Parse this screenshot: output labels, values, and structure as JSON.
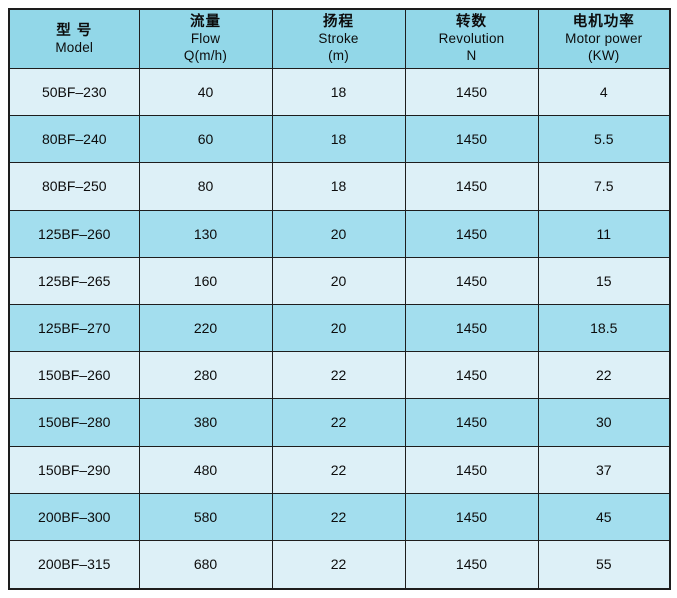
{
  "table": {
    "columns": [
      {
        "zh": "型 号",
        "en": "Model",
        "sub": ""
      },
      {
        "zh": "流量",
        "en": "Flow",
        "sub": "Q(m/h)"
      },
      {
        "zh": "扬程",
        "en": "Stroke",
        "sub": "(m)"
      },
      {
        "zh": "转数",
        "en": "Revolution",
        "sub": "N"
      },
      {
        "zh": "电机功率",
        "en": "Motor power",
        "sub": "(KW)"
      }
    ],
    "rows": [
      {
        "model": "50BF–230",
        "flow": "40",
        "stroke": "18",
        "revolution": "1450",
        "motor_power": "4"
      },
      {
        "model": "80BF–240",
        "flow": "60",
        "stroke": "18",
        "revolution": "1450",
        "motor_power": "5.5"
      },
      {
        "model": "80BF–250",
        "flow": "80",
        "stroke": "18",
        "revolution": "1450",
        "motor_power": "7.5"
      },
      {
        "model": "125BF–260",
        "flow": "130",
        "stroke": "20",
        "revolution": "1450",
        "motor_power": "11"
      },
      {
        "model": "125BF–265",
        "flow": "160",
        "stroke": "20",
        "revolution": "1450",
        "motor_power": "15"
      },
      {
        "model": "125BF–270",
        "flow": "220",
        "stroke": "20",
        "revolution": "1450",
        "motor_power": "18.5"
      },
      {
        "model": "150BF–260",
        "flow": "280",
        "stroke": "22",
        "revolution": "1450",
        "motor_power": "22"
      },
      {
        "model": "150BF–280",
        "flow": "380",
        "stroke": "22",
        "revolution": "1450",
        "motor_power": "30"
      },
      {
        "model": "150BF–290",
        "flow": "480",
        "stroke": "22",
        "revolution": "1450",
        "motor_power": "37"
      },
      {
        "model": "200BF–300",
        "flow": "580",
        "stroke": "22",
        "revolution": "1450",
        "motor_power": "45"
      },
      {
        "model": "200BF–315",
        "flow": "680",
        "stroke": "22",
        "revolution": "1450",
        "motor_power": "55"
      }
    ],
    "colors": {
      "header_bg": "#92d7e8",
      "row_dark_bg": "#a3deee",
      "row_light_bg": "#ddf0f7",
      "border": "#1d1d1d",
      "text": "#0c0c0c",
      "page_bg": "#ffffff"
    }
  }
}
